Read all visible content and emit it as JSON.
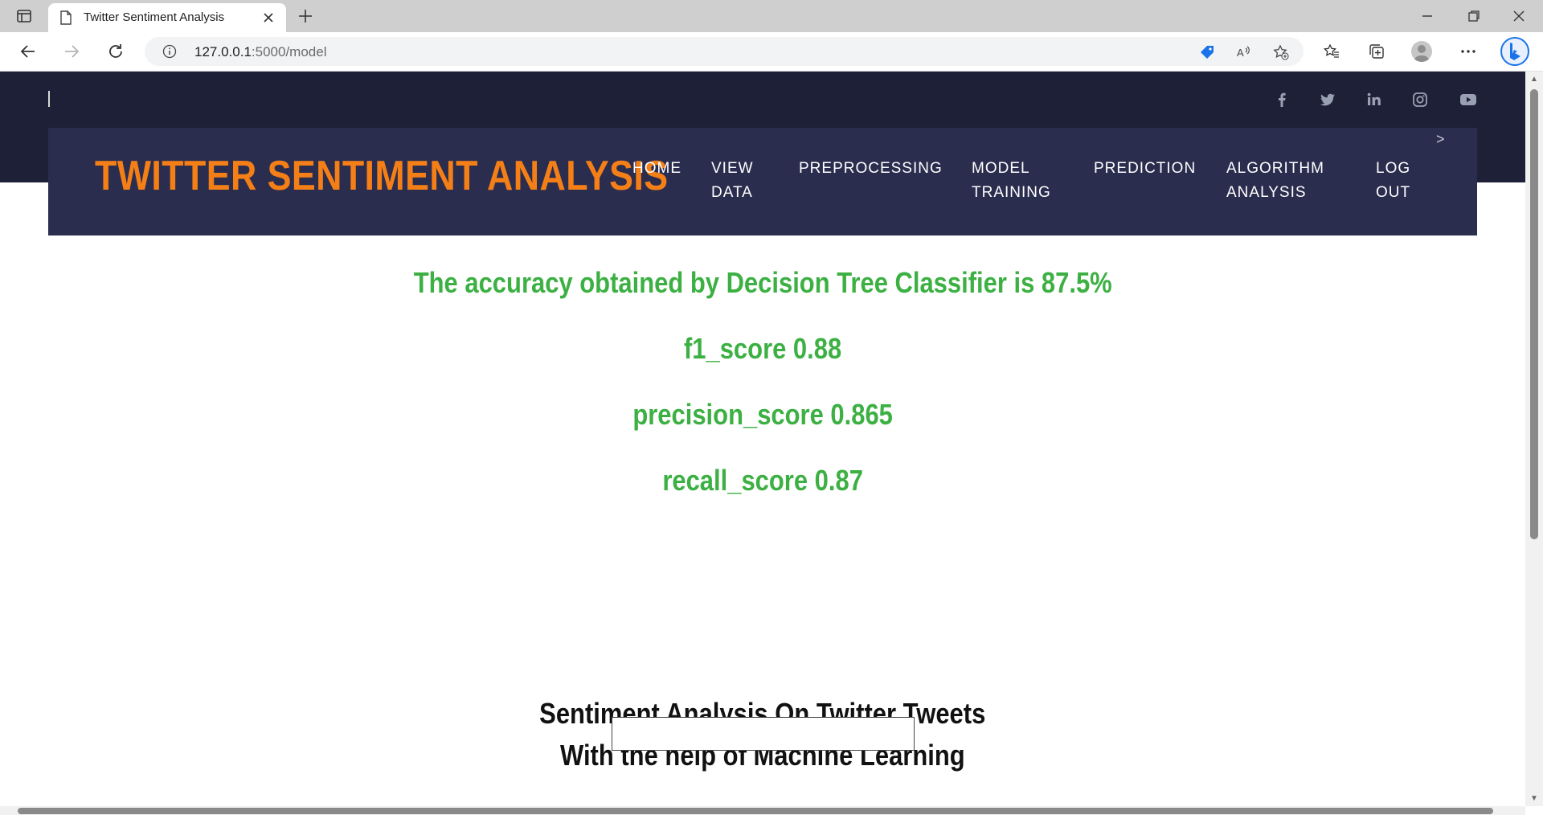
{
  "browser": {
    "tab_title": "Twitter Sentiment Analysis",
    "url_host": "127.0.0.1",
    "url_path": ":5000/model"
  },
  "site": {
    "brand": "TWITTER SENTIMENT ANALYSIS",
    "nav": [
      {
        "line1": "HOME",
        "line2": ""
      },
      {
        "line1": "VIEW",
        "line2": "DATA"
      },
      {
        "line1": "PREPROCESSING",
        "line2": ""
      },
      {
        "line1": "MODEL",
        "line2": "TRAINING"
      },
      {
        "line1": "PREDICTION",
        "line2": ""
      },
      {
        "line1": "ALGORITHM",
        "line2": "ANALYSIS"
      },
      {
        "line1": "LOG",
        "line2": "OUT"
      }
    ],
    "social_icons": [
      "facebook-icon",
      "twitter-icon",
      "linkedin-icon",
      "instagram-icon",
      "youtube-icon"
    ]
  },
  "results": {
    "accuracy_text": "The accuracy obtained by Decision Tree Classifier is 87.5%",
    "f1_text": "f1_score 0.88",
    "precision_text": "precision_score 0.865",
    "recall_text": "recall_score 0.87"
  },
  "section": {
    "title_line1": "Sentiment Analysis On Twitter Tweets",
    "title_line2": "With the help of Machine Learning"
  },
  "colors": {
    "brand_orange": "#f57f17",
    "nav_bg": "#2b2d4f",
    "top_bg": "#1e2038",
    "metric_green": "#3cb043"
  }
}
